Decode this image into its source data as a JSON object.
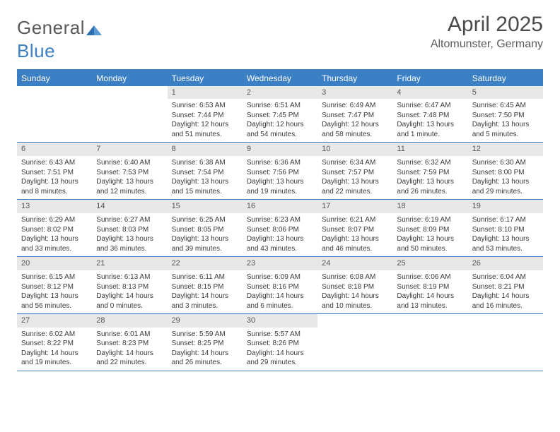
{
  "brand": {
    "name_gray": "General",
    "name_blue": "Blue"
  },
  "title": "April 2025",
  "location": "Altomunster, Germany",
  "colors": {
    "accent": "#3b7fc4",
    "header_bg": "#3b7fc4",
    "daynum_bg": "#e8e8e8",
    "text": "#3a3a3a",
    "title_text": "#4a4a4a"
  },
  "weekdays": [
    "Sunday",
    "Monday",
    "Tuesday",
    "Wednesday",
    "Thursday",
    "Friday",
    "Saturday"
  ],
  "weeks": [
    [
      null,
      null,
      {
        "n": "1",
        "sr": "6:53 AM",
        "ss": "7:44 PM",
        "dl": "12 hours and 51 minutes."
      },
      {
        "n": "2",
        "sr": "6:51 AM",
        "ss": "7:45 PM",
        "dl": "12 hours and 54 minutes."
      },
      {
        "n": "3",
        "sr": "6:49 AM",
        "ss": "7:47 PM",
        "dl": "12 hours and 58 minutes."
      },
      {
        "n": "4",
        "sr": "6:47 AM",
        "ss": "7:48 PM",
        "dl": "13 hours and 1 minute."
      },
      {
        "n": "5",
        "sr": "6:45 AM",
        "ss": "7:50 PM",
        "dl": "13 hours and 5 minutes."
      }
    ],
    [
      {
        "n": "6",
        "sr": "6:43 AM",
        "ss": "7:51 PM",
        "dl": "13 hours and 8 minutes."
      },
      {
        "n": "7",
        "sr": "6:40 AM",
        "ss": "7:53 PM",
        "dl": "13 hours and 12 minutes."
      },
      {
        "n": "8",
        "sr": "6:38 AM",
        "ss": "7:54 PM",
        "dl": "13 hours and 15 minutes."
      },
      {
        "n": "9",
        "sr": "6:36 AM",
        "ss": "7:56 PM",
        "dl": "13 hours and 19 minutes."
      },
      {
        "n": "10",
        "sr": "6:34 AM",
        "ss": "7:57 PM",
        "dl": "13 hours and 22 minutes."
      },
      {
        "n": "11",
        "sr": "6:32 AM",
        "ss": "7:59 PM",
        "dl": "13 hours and 26 minutes."
      },
      {
        "n": "12",
        "sr": "6:30 AM",
        "ss": "8:00 PM",
        "dl": "13 hours and 29 minutes."
      }
    ],
    [
      {
        "n": "13",
        "sr": "6:29 AM",
        "ss": "8:02 PM",
        "dl": "13 hours and 33 minutes."
      },
      {
        "n": "14",
        "sr": "6:27 AM",
        "ss": "8:03 PM",
        "dl": "13 hours and 36 minutes."
      },
      {
        "n": "15",
        "sr": "6:25 AM",
        "ss": "8:05 PM",
        "dl": "13 hours and 39 minutes."
      },
      {
        "n": "16",
        "sr": "6:23 AM",
        "ss": "8:06 PM",
        "dl": "13 hours and 43 minutes."
      },
      {
        "n": "17",
        "sr": "6:21 AM",
        "ss": "8:07 PM",
        "dl": "13 hours and 46 minutes."
      },
      {
        "n": "18",
        "sr": "6:19 AM",
        "ss": "8:09 PM",
        "dl": "13 hours and 50 minutes."
      },
      {
        "n": "19",
        "sr": "6:17 AM",
        "ss": "8:10 PM",
        "dl": "13 hours and 53 minutes."
      }
    ],
    [
      {
        "n": "20",
        "sr": "6:15 AM",
        "ss": "8:12 PM",
        "dl": "13 hours and 56 minutes."
      },
      {
        "n": "21",
        "sr": "6:13 AM",
        "ss": "8:13 PM",
        "dl": "14 hours and 0 minutes."
      },
      {
        "n": "22",
        "sr": "6:11 AM",
        "ss": "8:15 PM",
        "dl": "14 hours and 3 minutes."
      },
      {
        "n": "23",
        "sr": "6:09 AM",
        "ss": "8:16 PM",
        "dl": "14 hours and 6 minutes."
      },
      {
        "n": "24",
        "sr": "6:08 AM",
        "ss": "8:18 PM",
        "dl": "14 hours and 10 minutes."
      },
      {
        "n": "25",
        "sr": "6:06 AM",
        "ss": "8:19 PM",
        "dl": "14 hours and 13 minutes."
      },
      {
        "n": "26",
        "sr": "6:04 AM",
        "ss": "8:21 PM",
        "dl": "14 hours and 16 minutes."
      }
    ],
    [
      {
        "n": "27",
        "sr": "6:02 AM",
        "ss": "8:22 PM",
        "dl": "14 hours and 19 minutes."
      },
      {
        "n": "28",
        "sr": "6:01 AM",
        "ss": "8:23 PM",
        "dl": "14 hours and 22 minutes."
      },
      {
        "n": "29",
        "sr": "5:59 AM",
        "ss": "8:25 PM",
        "dl": "14 hours and 26 minutes."
      },
      {
        "n": "30",
        "sr": "5:57 AM",
        "ss": "8:26 PM",
        "dl": "14 hours and 29 minutes."
      },
      null,
      null,
      null
    ]
  ],
  "labels": {
    "sunrise": "Sunrise:",
    "sunset": "Sunset:",
    "daylight": "Daylight:"
  }
}
